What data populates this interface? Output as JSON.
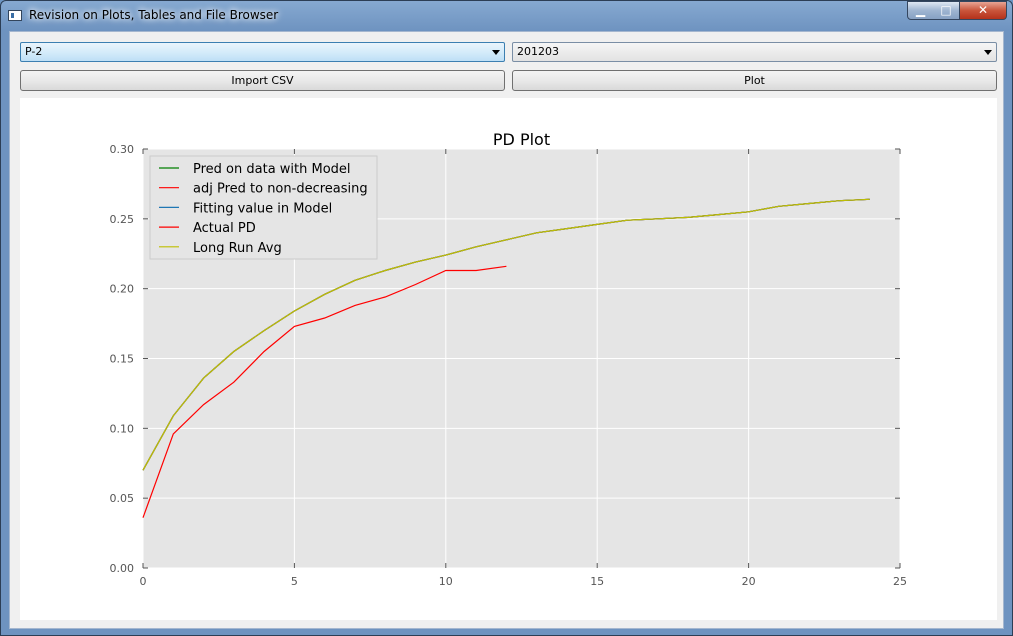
{
  "window": {
    "title": "Revision on Plots, Tables and File Browser",
    "controls": {
      "minimize": "▁",
      "maximize": "□",
      "close": "✕"
    }
  },
  "controls": {
    "model_select_value": "P-2",
    "date_select_value": "201203",
    "import_label": "Import CSV",
    "plot_label": "Plot"
  },
  "chart_data": {
    "type": "line",
    "title": "PD Plot",
    "xlim": [
      0,
      25
    ],
    "ylim": [
      0,
      0.3
    ],
    "xticks": [
      0,
      5,
      10,
      15,
      20,
      25
    ],
    "yticks": [
      0.0,
      0.05,
      0.1,
      0.15,
      0.2,
      0.25,
      0.3
    ],
    "grid": true,
    "legend_position": "upper-left",
    "series": [
      {
        "name": "Pred on data with Model",
        "color": "#007f00",
        "x": [
          0,
          1,
          2,
          3,
          4,
          5,
          6,
          7,
          8,
          9,
          10,
          11,
          12,
          13,
          14,
          15,
          16,
          17,
          18,
          19,
          20,
          21,
          22,
          23,
          24
        ],
        "y": [
          0.07,
          0.109,
          0.136,
          0.155,
          0.17,
          0.184,
          0.196,
          0.206,
          0.213,
          0.219,
          0.224,
          0.23,
          0.235,
          0.24,
          0.243,
          0.246,
          0.249,
          0.25,
          0.251,
          0.253,
          0.255,
          0.259,
          0.261,
          0.263,
          0.264
        ]
      },
      {
        "name": "adj Pred to non-decreasing",
        "color": "#ff0000",
        "x": [
          0,
          1,
          2,
          3,
          4,
          5,
          6,
          7,
          8,
          9,
          10,
          11,
          12,
          13,
          14,
          15,
          16,
          17,
          18,
          19,
          20,
          21,
          22,
          23,
          24
        ],
        "y": [
          0.07,
          0.109,
          0.136,
          0.155,
          0.17,
          0.184,
          0.196,
          0.206,
          0.213,
          0.219,
          0.224,
          0.23,
          0.235,
          0.24,
          0.243,
          0.246,
          0.249,
          0.25,
          0.251,
          0.253,
          0.255,
          0.259,
          0.261,
          0.263,
          0.264
        ]
      },
      {
        "name": "Fitting value in Model",
        "color": "#1f77b4",
        "x": [
          0,
          1,
          2,
          3,
          4,
          5,
          6,
          7,
          8,
          9,
          10,
          11,
          12,
          13,
          14,
          15,
          16,
          17,
          18,
          19,
          20,
          21,
          22,
          23,
          24
        ],
        "y": [
          0.07,
          0.109,
          0.136,
          0.155,
          0.17,
          0.184,
          0.196,
          0.206,
          0.213,
          0.219,
          0.224,
          0.23,
          0.235,
          0.24,
          0.243,
          0.246,
          0.249,
          0.25,
          0.251,
          0.253,
          0.255,
          0.259,
          0.261,
          0.263,
          0.264
        ]
      },
      {
        "name": "Actual PD",
        "color": "#ff0000",
        "x": [
          0,
          1,
          2,
          3,
          4,
          5,
          6,
          7,
          8,
          9,
          10,
          11,
          12
        ],
        "y": [
          0.036,
          0.096,
          0.117,
          0.133,
          0.155,
          0.173,
          0.179,
          0.188,
          0.194,
          0.203,
          0.213,
          0.213,
          0.216
        ]
      },
      {
        "name": "Long Run Avg",
        "color": "#bfbf00",
        "x": [
          0,
          1,
          2,
          3,
          4,
          5,
          6,
          7,
          8,
          9,
          10,
          11,
          12,
          13,
          14,
          15,
          16,
          17,
          18,
          19,
          20,
          21,
          22,
          23,
          24
        ],
        "y": [
          0.07,
          0.109,
          0.136,
          0.155,
          0.17,
          0.184,
          0.196,
          0.206,
          0.213,
          0.219,
          0.224,
          0.23,
          0.235,
          0.24,
          0.243,
          0.246,
          0.249,
          0.25,
          0.251,
          0.253,
          0.255,
          0.259,
          0.261,
          0.263,
          0.264
        ]
      }
    ]
  }
}
